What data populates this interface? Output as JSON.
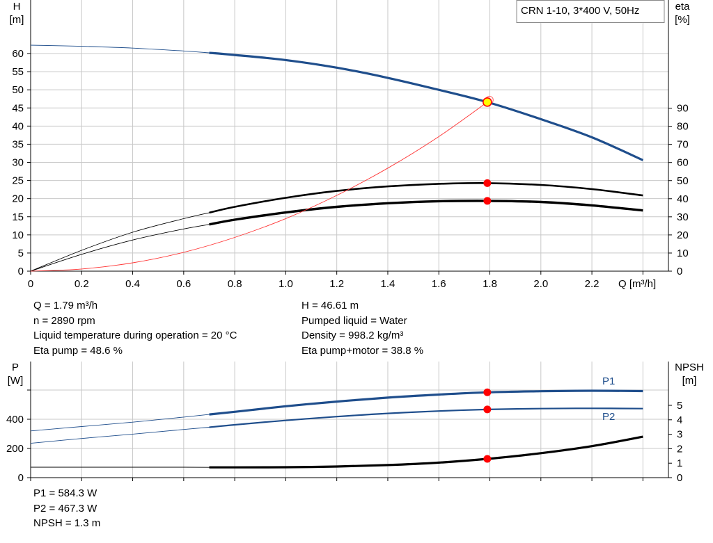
{
  "chart_data": [
    {
      "type": "line",
      "title": "CRN 1-10, 3*400 V, 50Hz",
      "xlabel": "Q [m³/h]",
      "ylabel": "H\n[m]",
      "y2label": "eta\n[%]",
      "xlim": [
        0,
        2.5
      ],
      "ylim": [
        0,
        65
      ],
      "y2lim": [
        0,
        100
      ],
      "x_ticks": [
        "0",
        "0.2",
        "0.4",
        "0.6",
        "0.8",
        "1.0",
        "1.2",
        "1.4",
        "1.6",
        "1.8",
        "2.0",
        "2.2"
      ],
      "y_ticks": [
        "0",
        "5",
        "10",
        "15",
        "20",
        "25",
        "30",
        "35",
        "40",
        "45",
        "50",
        "55",
        "60"
      ],
      "y2_ticks": [
        "0",
        "10",
        "20",
        "30",
        "40",
        "50",
        "60",
        "70",
        "80",
        "90"
      ],
      "grid": true,
      "series": [
        {
          "key": "head",
          "axis": "left",
          "color": "#1f4e8c",
          "values": [
            [
              0,
              62.3
            ],
            [
              0.2,
              62.0
            ],
            [
              0.4,
              61.5
            ],
            [
              0.6,
              60.7
            ],
            [
              0.7,
              60.2
            ],
            [
              0.8,
              59.6
            ],
            [
              1.0,
              58.2
            ],
            [
              1.2,
              56.1
            ],
            [
              1.4,
              53.3
            ],
            [
              1.6,
              50.0
            ],
            [
              1.79,
              46.61
            ],
            [
              2.0,
              41.9
            ],
            [
              2.2,
              36.9
            ],
            [
              2.4,
              30.6
            ]
          ]
        },
        {
          "key": "eta_pump",
          "axis": "right",
          "color": "#000000",
          "values": [
            [
              0,
              0
            ],
            [
              0.2,
              11.5
            ],
            [
              0.4,
              21.5
            ],
            [
              0.6,
              29.0
            ],
            [
              0.7,
              32.3
            ],
            [
              0.8,
              35.5
            ],
            [
              1.0,
              40.5
            ],
            [
              1.2,
              44.3
            ],
            [
              1.4,
              46.8
            ],
            [
              1.6,
              48.2
            ],
            [
              1.79,
              48.6
            ],
            [
              2.0,
              47.6
            ],
            [
              2.2,
              45.3
            ],
            [
              2.4,
              41.8
            ]
          ]
        },
        {
          "key": "eta_total",
          "axis": "right",
          "color": "#000000",
          "values": [
            [
              0,
              0
            ],
            [
              0.2,
              9.3
            ],
            [
              0.4,
              17.2
            ],
            [
              0.6,
              23.3
            ],
            [
              0.7,
              25.8
            ],
            [
              0.8,
              28.4
            ],
            [
              1.0,
              32.4
            ],
            [
              1.2,
              35.5
            ],
            [
              1.4,
              37.5
            ],
            [
              1.6,
              38.6
            ],
            [
              1.79,
              38.8
            ],
            [
              2.0,
              38.2
            ],
            [
              2.2,
              36.3
            ],
            [
              2.4,
              33.5
            ]
          ]
        },
        {
          "key": "system",
          "axis": "left",
          "color": "#ff3333",
          "values": [
            [
              0,
              0
            ],
            [
              0.2,
              0.6
            ],
            [
              0.4,
              2.3
            ],
            [
              0.6,
              5.2
            ],
            [
              0.8,
              9.3
            ],
            [
              1.0,
              14.5
            ],
            [
              1.2,
              20.9
            ],
            [
              1.4,
              28.4
            ],
            [
              1.6,
              37.1
            ],
            [
              1.79,
              46.61
            ]
          ]
        }
      ],
      "operating_point": {
        "x": 1.79,
        "head": 46.61,
        "eta_pump": 48.6,
        "eta_total": 38.8
      }
    },
    {
      "type": "line",
      "xlabel": "",
      "ylabel": "P\n[W]",
      "y2label": "NPSH\n[m]",
      "xlim": [
        0,
        2.5
      ],
      "ylim": [
        0,
        700
      ],
      "y2lim": [
        0,
        7
      ],
      "y_ticks": [
        "0",
        "200",
        "400"
      ],
      "y2_ticks": [
        "0",
        "1",
        "2",
        "3",
        "4",
        "5"
      ],
      "grid": true,
      "series": [
        {
          "key": "P1",
          "name": "P1",
          "axis": "left",
          "color": "#1f4e8c",
          "values": [
            [
              0,
              320
            ],
            [
              0.2,
              350
            ],
            [
              0.4,
              380
            ],
            [
              0.6,
              415
            ],
            [
              0.7,
              433
            ],
            [
              0.8,
              451
            ],
            [
              1.0,
              489
            ],
            [
              1.2,
              521
            ],
            [
              1.4,
              548
            ],
            [
              1.6,
              569
            ],
            [
              1.79,
              584.3
            ],
            [
              2.0,
              592
            ],
            [
              2.2,
              595
            ],
            [
              2.4,
              593
            ]
          ]
        },
        {
          "key": "P2",
          "name": "P2",
          "axis": "left",
          "color": "#1f4e8c",
          "values": [
            [
              0,
              235
            ],
            [
              0.2,
              268
            ],
            [
              0.4,
              298
            ],
            [
              0.6,
              330
            ],
            [
              0.7,
              345
            ],
            [
              0.8,
              362
            ],
            [
              1.0,
              392
            ],
            [
              1.2,
              418
            ],
            [
              1.4,
              440
            ],
            [
              1.6,
              456
            ],
            [
              1.79,
              467.3
            ],
            [
              2.0,
              473
            ],
            [
              2.2,
              475
            ],
            [
              2.4,
              473
            ]
          ]
        },
        {
          "key": "npsh",
          "axis": "right",
          "color": "#000000",
          "values": [
            [
              0,
              0.72
            ],
            [
              0.2,
              0.72
            ],
            [
              0.4,
              0.72
            ],
            [
              0.6,
              0.72
            ],
            [
              0.7,
              0.71
            ],
            [
              0.8,
              0.71
            ],
            [
              1.0,
              0.72
            ],
            [
              1.2,
              0.77
            ],
            [
              1.4,
              0.87
            ],
            [
              1.6,
              1.04
            ],
            [
              1.79,
              1.3
            ],
            [
              2.0,
              1.69
            ],
            [
              2.2,
              2.18
            ],
            [
              2.4,
              2.83
            ]
          ]
        }
      ],
      "operating_point": {
        "x": 1.79,
        "P1": 584.3,
        "P2": 467.3,
        "npsh": 1.3
      }
    }
  ],
  "info_left": [
    "Q = 1.79 m³/h",
    "n = 2890 rpm",
    "Liquid temperature during operation = 20 °C",
    "Eta pump = 48.6 %"
  ],
  "info_right": [
    "H = 46.61 m",
    "Pumped liquid = Water",
    "Density = 998.2 kg/m³",
    "Eta pump+motor = 38.8 %"
  ],
  "info_bottom": [
    "P1 = 584.3 W",
    "P2 = 467.3 W",
    "NPSH = 1.3 m"
  ],
  "colors": {
    "blue": "#1f4e8c",
    "red_point": "#ff0000",
    "yellow_point": "#ffff00",
    "system_curve": "#ff3333",
    "grid": "#c8c8c8"
  }
}
